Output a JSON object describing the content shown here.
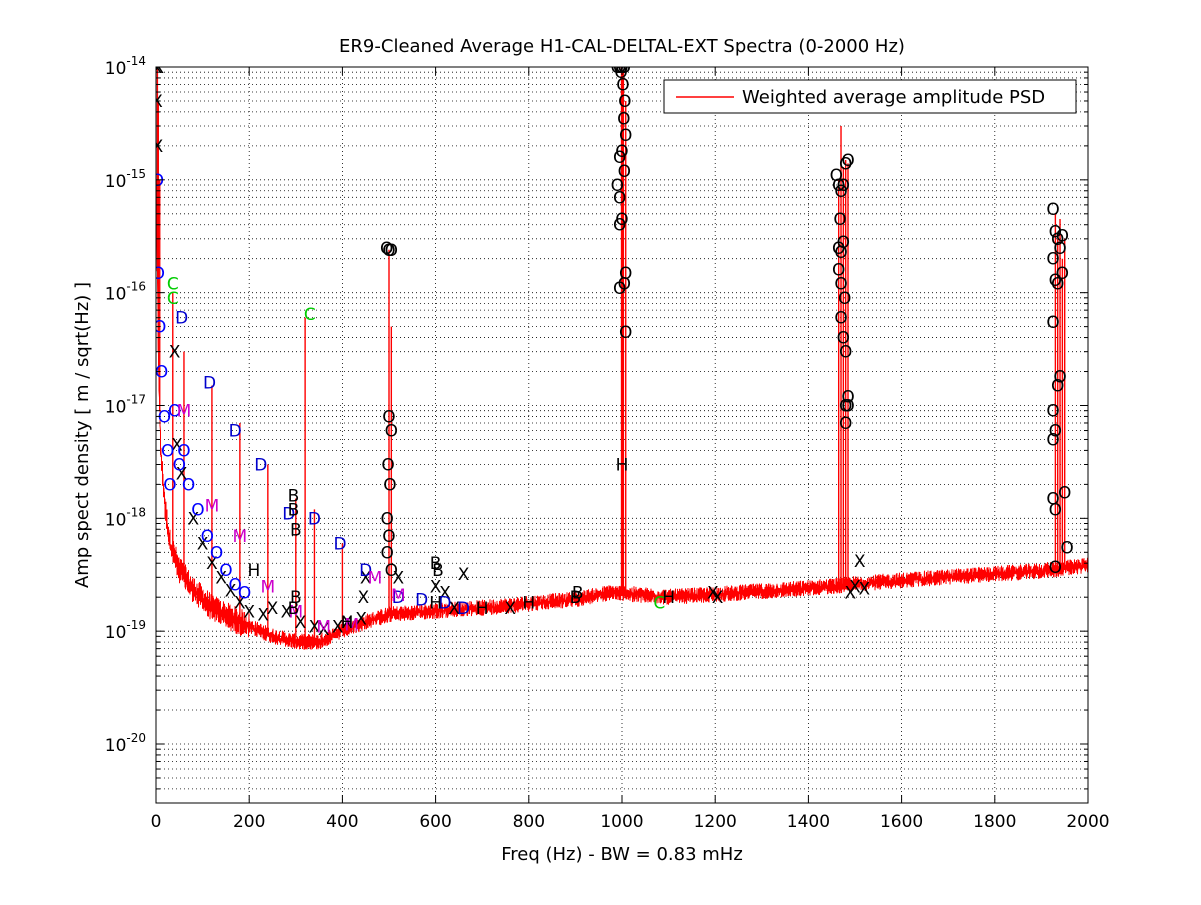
{
  "chart_data": {
    "type": "line",
    "title": "ER9-Cleaned Average H1-CAL-DELTAL-EXT Spectra (0-2000 Hz)",
    "xlabel": "Freq (Hz) - BW = 0.83 mHz",
    "ylabel": "Amp spect density [ m / sqrt(Hz) ]",
    "xlim": [
      0,
      2000
    ],
    "ylim": [
      3e-21,
      1e-14
    ],
    "yscale": "log",
    "grid": true,
    "legend_position": "top-right",
    "x_ticks": [
      0,
      200,
      400,
      600,
      800,
      1000,
      1200,
      1400,
      1600,
      1800,
      2000
    ],
    "x_tick_labels": [
      "0",
      "200",
      "400",
      "600",
      "800",
      "1000",
      "1200",
      "1400",
      "1600",
      "1800",
      "2000"
    ],
    "y_ticks": [
      {
        "value": 1e-20,
        "base": "10",
        "exp": "-20"
      },
      {
        "value": 1e-19,
        "base": "10",
        "exp": "-19"
      },
      {
        "value": 1e-18,
        "base": "10",
        "exp": "-18"
      },
      {
        "value": 1e-17,
        "base": "10",
        "exp": "-17"
      },
      {
        "value": 1e-16,
        "base": "10",
        "exp": "-16"
      },
      {
        "value": 1e-15,
        "base": "10",
        "exp": "-15"
      },
      {
        "value": 1e-14,
        "base": "10",
        "exp": "-14"
      }
    ],
    "series": [
      {
        "name": "Weighted average amplitude PSD",
        "color": "#ff0000",
        "baseline": [
          [
            1,
            8e-16
          ],
          [
            5,
            3e-17
          ],
          [
            10,
            4e-18
          ],
          [
            20,
            1.2e-18
          ],
          [
            30,
            6e-19
          ],
          [
            50,
            3.5e-19
          ],
          [
            80,
            2.3e-19
          ],
          [
            120,
            1.6e-19
          ],
          [
            160,
            1.3e-19
          ],
          [
            200,
            1.1e-19
          ],
          [
            250,
            9e-20
          ],
          [
            300,
            8e-20
          ],
          [
            350,
            8e-20
          ],
          [
            400,
            1e-19
          ],
          [
            450,
            1.2e-19
          ],
          [
            500,
            1.4e-19
          ],
          [
            600,
            1.5e-19
          ],
          [
            700,
            1.6e-19
          ],
          [
            800,
            1.75e-19
          ],
          [
            900,
            1.9e-19
          ],
          [
            980,
            2.2e-19
          ],
          [
            1030,
            2.1e-19
          ],
          [
            1100,
            2e-19
          ],
          [
            1200,
            2.1e-19
          ],
          [
            1300,
            2.25e-19
          ],
          [
            1400,
            2.4e-19
          ],
          [
            1455,
            2.5e-19
          ],
          [
            1500,
            2.6e-19
          ],
          [
            1600,
            2.8e-19
          ],
          [
            1700,
            3e-19
          ],
          [
            1800,
            3.2e-19
          ],
          [
            1900,
            3.4e-19
          ],
          [
            2000,
            3.8e-19
          ]
        ],
        "peaks": [
          [
            3,
            1e-14
          ],
          [
            5,
            5e-15
          ],
          [
            8,
            1e-15
          ],
          [
            36,
            1e-16
          ],
          [
            60,
            3e-17
          ],
          [
            120,
            1.5e-17
          ],
          [
            180,
            7e-18
          ],
          [
            240,
            3e-18
          ],
          [
            300,
            1.5e-18
          ],
          [
            320,
            6e-17
          ],
          [
            340,
            1.2e-18
          ],
          [
            400,
            6e-19
          ],
          [
            500,
            2.4e-16
          ],
          [
            505,
            5e-17
          ],
          [
            999,
            1e-14
          ],
          [
            1001,
            9e-15
          ],
          [
            1003,
            9.5e-15
          ],
          [
            1008,
            5e-15
          ],
          [
            1465,
            1e-15
          ],
          [
            1470,
            3e-15
          ],
          [
            1475,
            1.3e-15
          ],
          [
            1480,
            1.5e-15
          ],
          [
            1485,
            1.4e-15
          ],
          [
            1930,
            5e-16
          ],
          [
            1935,
            3e-16
          ],
          [
            1940,
            4.5e-16
          ],
          [
            1945,
            2e-16
          ],
          [
            1950,
            3e-16
          ]
        ]
      }
    ],
    "annotations": [
      {
        "label": "X",
        "color": "#000000",
        "points": [
          [
            1,
            1e-14
          ],
          [
            2,
            5e-15
          ],
          [
            3,
            2e-15
          ],
          [
            5,
            1e-14
          ],
          [
            40,
            3e-17
          ],
          [
            45,
            4.5e-18
          ],
          [
            55,
            2.5e-18
          ],
          [
            80,
            1e-18
          ],
          [
            100,
            6e-19
          ],
          [
            120,
            4e-19
          ],
          [
            140,
            3e-19
          ],
          [
            160,
            2.3e-19
          ],
          [
            180,
            1.8e-19
          ],
          [
            200,
            1.5e-19
          ],
          [
            230,
            1.4e-19
          ],
          [
            250,
            1.6e-19
          ],
          [
            280,
            1.5e-19
          ],
          [
            310,
            1.2e-19
          ],
          [
            340,
            1.1e-19
          ],
          [
            360,
            1.05e-19
          ],
          [
            390,
            1.1e-19
          ],
          [
            410,
            1.2e-19
          ],
          [
            440,
            1.3e-19
          ],
          [
            445,
            2e-19
          ],
          [
            450,
            3e-19
          ],
          [
            520,
            3e-19
          ],
          [
            600,
            2.5e-19
          ],
          [
            620,
            2.2e-19
          ],
          [
            640,
            1.6e-19
          ],
          [
            660,
            3.2e-19
          ],
          [
            760,
            1.6e-19
          ],
          [
            1195,
            2.2e-19
          ],
          [
            1205,
            2e-19
          ],
          [
            1490,
            2.2e-19
          ],
          [
            1500,
            2.5e-19
          ],
          [
            1510,
            4.2e-19
          ],
          [
            1520,
            2.4e-19
          ]
        ]
      },
      {
        "label": "O",
        "color": "#0000ff",
        "points": [
          [
            3,
            1e-15
          ],
          [
            5,
            1.5e-16
          ],
          [
            8,
            5e-17
          ],
          [
            12,
            2e-17
          ],
          [
            18,
            8e-18
          ],
          [
            25,
            4e-18
          ],
          [
            30,
            2e-18
          ],
          [
            40,
            9e-18
          ],
          [
            50,
            3e-18
          ],
          [
            60,
            4e-18
          ],
          [
            70,
            2e-18
          ],
          [
            90,
            1.2e-18
          ],
          [
            110,
            7e-19
          ],
          [
            130,
            5e-19
          ],
          [
            150,
            3.5e-19
          ],
          [
            170,
            2.6e-19
          ],
          [
            190,
            2.2e-19
          ]
        ]
      },
      {
        "label": "O",
        "color": "#000000",
        "points": [
          [
            495,
            2.5e-16
          ],
          [
            500,
            2.4e-16
          ],
          [
            505,
            2.4e-16
          ],
          [
            500,
            8e-18
          ],
          [
            505,
            6e-18
          ],
          [
            498,
            3e-18
          ],
          [
            502,
            2e-18
          ],
          [
            496,
            1e-18
          ],
          [
            500,
            7e-19
          ],
          [
            496,
            5e-19
          ],
          [
            505,
            3.5e-19
          ],
          [
            990,
            1e-14
          ],
          [
            995,
            1e-14
          ],
          [
            1000,
            1e-14
          ],
          [
            1005,
            1e-14
          ],
          [
            998,
            9e-15
          ],
          [
            1002,
            7e-15
          ],
          [
            1006,
            5e-15
          ],
          [
            1004,
            3.5e-15
          ],
          [
            1008,
            2.5e-15
          ],
          [
            995,
            1.6e-15
          ],
          [
            1000,
            1.8e-15
          ],
          [
            1005,
            1.2e-15
          ],
          [
            990,
            9e-16
          ],
          [
            995,
            7e-16
          ],
          [
            1000,
            4.5e-16
          ],
          [
            995,
            4e-16
          ],
          [
            1008,
            1.5e-16
          ],
          [
            1005,
            1.2e-16
          ],
          [
            995,
            1.1e-16
          ],
          [
            1008,
            4.5e-17
          ],
          [
            1460,
            1.1e-15
          ],
          [
            1465,
            9e-16
          ],
          [
            1470,
            8e-16
          ],
          [
            1475,
            9e-16
          ],
          [
            1480,
            1.4e-15
          ],
          [
            1485,
            1.5e-15
          ],
          [
            1468,
            4.5e-16
          ],
          [
            1475,
            2.8e-16
          ],
          [
            1465,
            2.5e-16
          ],
          [
            1470,
            2.3e-16
          ],
          [
            1465,
            1.6e-16
          ],
          [
            1470,
            1.2e-16
          ],
          [
            1478,
            9e-17
          ],
          [
            1470,
            6e-17
          ],
          [
            1475,
            4e-17
          ],
          [
            1480,
            3e-17
          ],
          [
            1485,
            1.2e-17
          ],
          [
            1480,
            1e-17
          ],
          [
            1485,
            1e-17
          ],
          [
            1480,
            7e-18
          ],
          [
            1925,
            5.5e-16
          ],
          [
            1930,
            3.5e-16
          ],
          [
            1935,
            3e-16
          ],
          [
            1940,
            2.5e-16
          ],
          [
            1945,
            3.2e-16
          ],
          [
            1925,
            2e-16
          ],
          [
            1930,
            1.3e-16
          ],
          [
            1935,
            1.2e-16
          ],
          [
            1945,
            1.5e-16
          ],
          [
            1925,
            5.5e-17
          ],
          [
            1940,
            1.8e-17
          ],
          [
            1935,
            1.5e-17
          ],
          [
            1925,
            9e-18
          ],
          [
            1930,
            6e-18
          ],
          [
            1925,
            5e-18
          ],
          [
            1925,
            1.5e-18
          ],
          [
            1930,
            1.2e-18
          ],
          [
            1950,
            1.7e-18
          ],
          [
            1955,
            5.5e-19
          ],
          [
            1930,
            3.7e-19
          ]
        ]
      },
      {
        "label": "D",
        "color": "#0000cc",
        "points": [
          [
            55,
            6e-17
          ],
          [
            115,
            1.6e-17
          ],
          [
            170,
            6e-18
          ],
          [
            225,
            3e-18
          ],
          [
            285,
            1.1e-18
          ],
          [
            340,
            1e-18
          ],
          [
            395,
            6e-19
          ],
          [
            450,
            3.5e-19
          ],
          [
            520,
            2e-19
          ],
          [
            570,
            1.9e-19
          ],
          [
            620,
            1.8e-19
          ],
          [
            660,
            1.6e-19
          ]
        ]
      },
      {
        "label": "M",
        "color": "#cc00cc",
        "points": [
          [
            60,
            9e-18
          ],
          [
            120,
            1.3e-18
          ],
          [
            180,
            7e-19
          ],
          [
            240,
            2.5e-19
          ],
          [
            300,
            1.5e-19
          ],
          [
            360,
            1.1e-19
          ],
          [
            420,
            1.15e-19
          ],
          [
            470,
            3e-19
          ],
          [
            520,
            2.1e-19
          ]
        ]
      },
      {
        "label": "C",
        "color": "#00cc00",
        "points": [
          [
            36,
            1.2e-16
          ],
          [
            36,
            9e-17
          ],
          [
            330,
            6.5e-17
          ],
          [
            1080,
            1.8e-19
          ]
        ]
      },
      {
        "label": "B",
        "color": "#000000",
        "points": [
          [
            295,
            1.6e-18
          ],
          [
            295,
            1.2e-18
          ],
          [
            300,
            8e-19
          ],
          [
            300,
            2e-19
          ],
          [
            295,
            1.6e-19
          ],
          [
            600,
            4e-19
          ],
          [
            605,
            3.5e-19
          ],
          [
            900,
            2e-19
          ],
          [
            905,
            2.2e-19
          ]
        ]
      },
      {
        "label": "H",
        "color": "#000000",
        "points": [
          [
            210,
            3.5e-19
          ],
          [
            410,
            1.2e-19
          ],
          [
            600,
            1.8e-19
          ],
          [
            700,
            1.6e-19
          ],
          [
            800,
            1.8e-19
          ],
          [
            1000,
            3e-18
          ],
          [
            1100,
            2e-19
          ]
        ]
      }
    ]
  }
}
